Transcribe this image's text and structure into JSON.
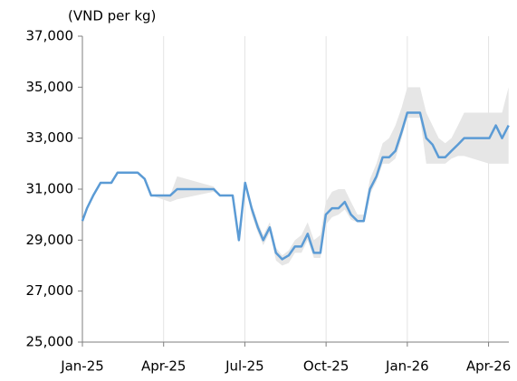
{
  "chart_data": {
    "type": "line",
    "y_label": "(VND per kg)",
    "x": [
      0,
      0.17,
      0.4,
      0.67,
      1.07,
      1.3,
      2.04,
      2.3,
      2.54,
      3.24,
      3.5,
      4.85,
      5.08,
      5.55,
      5.78,
      6.01,
      6.25,
      6.48,
      6.68,
      6.92,
      7.15,
      7.38,
      7.62,
      7.85,
      8.09,
      8.32,
      8.55,
      8.79,
      8.99,
      9.22,
      9.46,
      9.69,
      9.92,
      10.16,
      10.39,
      10.62,
      10.86,
      11.09,
      11.33,
      11.56,
      11.79,
      12.0,
      12.47,
      12.7,
      12.93,
      13.16,
      13.4,
      13.63,
      13.87,
      14.1,
      15.03,
      15.27,
      15.5,
      15.74
    ],
    "series": [
      {
        "color": "#5b9bd5",
        "values": [
          29750,
          30250,
          30750,
          31250,
          31250,
          31650,
          31650,
          31400,
          30750,
          30750,
          31000,
          31000,
          30750,
          30750,
          29000,
          31250,
          30250,
          29500,
          29000,
          29500,
          28500,
          28250,
          28400,
          28750,
          28750,
          29250,
          28500,
          28500,
          30000,
          30250,
          30250,
          30500,
          30000,
          29750,
          29750,
          31000,
          31500,
          32250,
          32250,
          32500,
          33250,
          34000,
          34000,
          33000,
          32750,
          32250,
          32250,
          32500,
          32750,
          33000,
          33000,
          33500,
          33000,
          33500
        ]
      }
    ],
    "band": {
      "color": "#e6e6e6",
      "upper": [
        29750,
        30250,
        30750,
        31250,
        31250,
        31650,
        31650,
        31400,
        30750,
        30750,
        31500,
        31100,
        30750,
        30750,
        29000,
        31250,
        30400,
        29700,
        29200,
        29700,
        28700,
        28400,
        28600,
        29000,
        29200,
        29700,
        29000,
        29200,
        30500,
        30900,
        31000,
        31000,
        30500,
        30000,
        30000,
        31400,
        32000,
        32800,
        33000,
        33500,
        34200,
        35000,
        35000,
        34000,
        33500,
        33000,
        32800,
        33000,
        33500,
        34000,
        34000,
        34000,
        34000,
        35000
      ],
      "lower": [
        29750,
        30250,
        30750,
        31250,
        31250,
        31650,
        31650,
        31400,
        30750,
        30500,
        30600,
        30900,
        30750,
        30750,
        29000,
        31250,
        30000,
        29300,
        28800,
        29300,
        28200,
        28000,
        28100,
        28500,
        28500,
        29000,
        28300,
        28300,
        29600,
        29900,
        30000,
        30200,
        29800,
        29700,
        29700,
        30800,
        31300,
        32000,
        32000,
        32200,
        33000,
        33800,
        33800,
        32000,
        32000,
        32000,
        32000,
        32200,
        32300,
        32300,
        32000,
        32000,
        32000,
        32000
      ]
    },
    "xlim": [
      0,
      15.75
    ],
    "xticks": [
      {
        "value": 0,
        "label": "Jan-25"
      },
      {
        "value": 3,
        "label": "Apr-25"
      },
      {
        "value": 6,
        "label": "Jul-25"
      },
      {
        "value": 9,
        "label": "Oct-25"
      },
      {
        "value": 12,
        "label": "Jan-26"
      },
      {
        "value": 15,
        "label": "Apr-26"
      }
    ],
    "ylim": [
      25000,
      37000
    ],
    "yticks": [
      {
        "value": 25000,
        "label": "25,000"
      },
      {
        "value": 27000,
        "label": "27,000"
      },
      {
        "value": 29000,
        "label": "29,000"
      },
      {
        "value": 31000,
        "label": "31,000"
      },
      {
        "value": 33000,
        "label": "33,000"
      },
      {
        "value": 35000,
        "label": "35,000"
      },
      {
        "value": 37000,
        "label": "37,000"
      }
    ],
    "grid": "x"
  }
}
